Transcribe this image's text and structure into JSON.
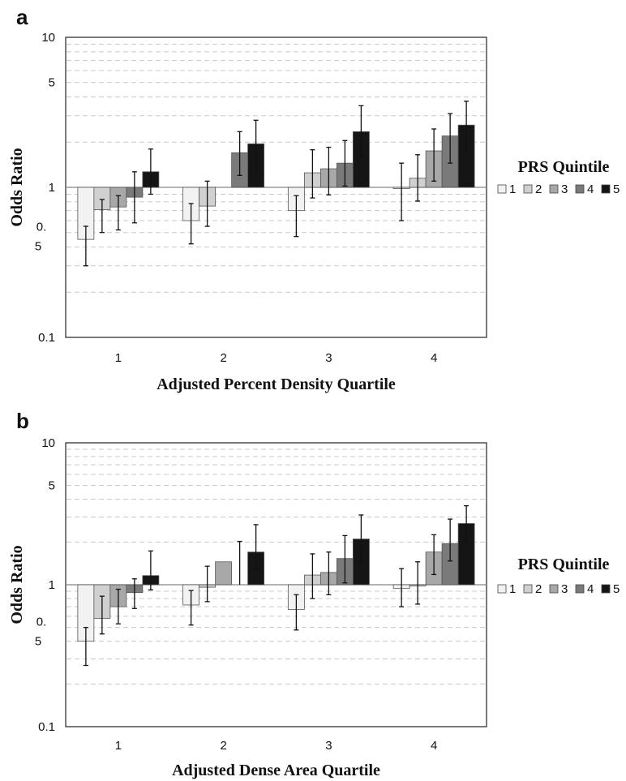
{
  "chart_data": [
    {
      "type": "bar",
      "panel": "a",
      "xlabel": "Adjusted Percent Density Quartile",
      "ylabel": "Odds Ratio",
      "yscale": "log",
      "ylim": [
        0.1,
        10
      ],
      "ytick_labels": [
        "10",
        "5",
        "1",
        "0.\n5",
        "0.1"
      ],
      "categories": [
        "1",
        "2",
        "3",
        "4"
      ],
      "legend_title": "PRS Quintile",
      "legend_position": "right",
      "grid": true,
      "error_bars": true,
      "series": [
        {
          "name": "1",
          "color": "#f2f2f2",
          "values": [
            0.45,
            0.6,
            0.7,
            0.98
          ],
          "lower": [
            0.3,
            0.42,
            0.47,
            0.6
          ],
          "upper": [
            0.55,
            0.78,
            0.88,
            1.45
          ]
        },
        {
          "name": "2",
          "color": "#d0d0d0",
          "values": [
            0.71,
            0.75,
            1.25,
            1.15
          ],
          "lower": [
            0.5,
            0.55,
            0.85,
            0.81
          ],
          "upper": [
            0.83,
            1.1,
            1.78,
            1.65
          ]
        },
        {
          "name": "3",
          "color": "#a8a8a8",
          "values": [
            0.74,
            null,
            1.33,
            1.75
          ],
          "lower": [
            0.52,
            null,
            0.89,
            1.1
          ],
          "upper": [
            0.88,
            null,
            1.85,
            2.45
          ]
        },
        {
          "name": "4",
          "color": "#7a7a7a",
          "values": [
            0.86,
            1.7,
            1.45,
            2.2
          ],
          "lower": [
            0.58,
            1.2,
            1.02,
            1.45
          ],
          "upper": [
            1.27,
            2.35,
            2.05,
            3.1
          ]
        },
        {
          "name": "5",
          "color": "#151515",
          "values": [
            1.27,
            1.95,
            2.35,
            2.6
          ],
          "lower": [
            0.9,
            1.3,
            1.6,
            1.75
          ],
          "upper": [
            1.8,
            2.8,
            3.5,
            3.75
          ]
        }
      ]
    },
    {
      "type": "bar",
      "panel": "b",
      "xlabel": "Adjusted Dense Area Quartile",
      "ylabel": "Odds Ratio",
      "yscale": "log",
      "ylim": [
        0.1,
        10
      ],
      "ytick_labels": [
        "10",
        "5",
        "1",
        "0.\n5",
        "0.1"
      ],
      "categories": [
        "1",
        "2",
        "3",
        "4"
      ],
      "legend_title": "PRS Quintile",
      "legend_position": "right",
      "grid": true,
      "error_bars": true,
      "series": [
        {
          "name": "1",
          "color": "#f2f2f2",
          "values": [
            0.4,
            0.72,
            0.67,
            0.94
          ],
          "lower": [
            0.27,
            0.52,
            0.48,
            0.7
          ],
          "upper": [
            0.5,
            0.91,
            0.85,
            1.3
          ]
        },
        {
          "name": "2",
          "color": "#d0d0d0",
          "values": [
            0.58,
            0.96,
            1.17,
            0.98
          ],
          "lower": [
            0.45,
            0.76,
            0.8,
            0.73
          ],
          "upper": [
            0.83,
            1.35,
            1.65,
            1.45
          ]
        },
        {
          "name": "3",
          "color": "#a8a8a8",
          "values": [
            0.7,
            1.45,
            1.22,
            1.7
          ],
          "lower": [
            0.53,
            null,
            0.85,
            1.18
          ],
          "upper": [
            0.93,
            null,
            1.7,
            2.25
          ]
        },
        {
          "name": "4",
          "color": "#7a7a7a",
          "values": [
            0.88,
            null,
            1.53,
            1.95
          ],
          "lower": [
            0.68,
            null,
            1.03,
            1.47
          ],
          "upper": [
            1.1,
            2.02,
            2.22,
            2.9
          ]
        },
        {
          "name": "5",
          "color": "#151515",
          "values": [
            1.16,
            1.7,
            2.1,
            2.7
          ],
          "lower": [
            0.92,
            1.28,
            1.45,
            2.05
          ],
          "upper": [
            1.73,
            2.65,
            3.1,
            3.6
          ]
        }
      ]
    }
  ]
}
